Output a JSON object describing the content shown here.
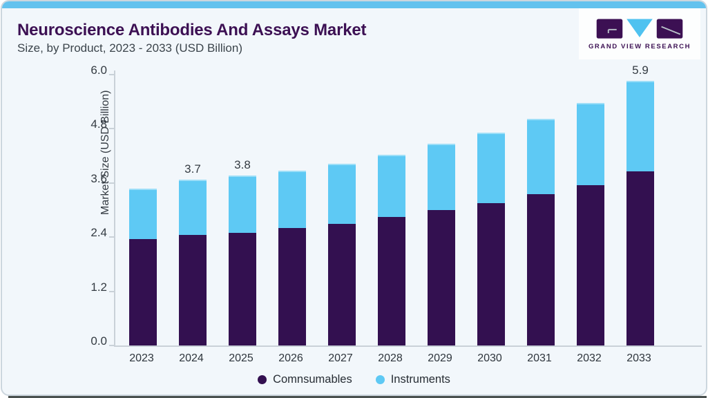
{
  "header": {
    "title": "Neuroscience Antibodies And Assays Market",
    "subtitle": "Size, by Product, 2023 - 2033 (USD Billion)"
  },
  "logo": {
    "brand": "GRAND VIEW RESEARCH",
    "purple": "#3c1053",
    "blue": "#4fc2f0"
  },
  "chart_data": {
    "type": "bar",
    "stacked": true,
    "title": "Neuroscience Antibodies And Assays Market Size, by Product, 2023 - 2033 (USD Billion)",
    "categories": [
      "2023",
      "2024",
      "2025",
      "2026",
      "2027",
      "2028",
      "2029",
      "2030",
      "2031",
      "2032",
      "2033"
    ],
    "series": [
      {
        "name": "Comnsumables",
        "color": "#331050",
        "values": [
          2.35,
          2.45,
          2.5,
          2.6,
          2.7,
          2.85,
          3.0,
          3.15,
          3.35,
          3.55,
          3.85
        ]
      },
      {
        "name": "Instruments",
        "color": "#5ec9f4",
        "values": [
          1.15,
          1.25,
          1.3,
          1.3,
          1.35,
          1.4,
          1.5,
          1.6,
          1.7,
          1.85,
          2.05
        ]
      }
    ],
    "totals": [
      3.5,
      3.7,
      3.8,
      3.9,
      4.05,
      4.25,
      4.5,
      4.75,
      5.05,
      5.4,
      5.9
    ],
    "bar_labels": [
      "",
      "3.7",
      "3.8",
      "",
      "",
      "",
      "",
      "",
      "",
      "",
      "5.9"
    ],
    "ylabel": "Market Size (USD Billion)",
    "yticks": [
      "6.0",
      "4.8",
      "3.6",
      "2.4",
      "1.2",
      "0.0"
    ],
    "ylim": [
      0,
      6
    ],
    "grid": false,
    "legend_position": "bottom"
  },
  "legend": {
    "items": [
      {
        "label": "Comnsumables",
        "color": "#331050"
      },
      {
        "label": "Instruments",
        "color": "#5ec9f4"
      }
    ]
  }
}
